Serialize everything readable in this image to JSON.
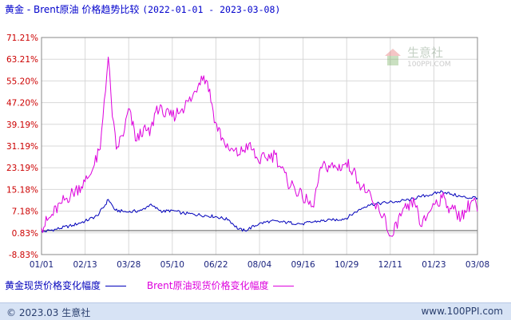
{
  "title": {
    "main": "黄金 - Brent原油 价格趋势比较",
    "date_range": "(2022-01-01 - 2023-03-08)"
  },
  "watermark": {
    "name": "生意社",
    "url": "100PPI.COM"
  },
  "legend": {
    "gold": "黄金现货价格变化幅度",
    "brent": "Brent原油现货价格变化幅度"
  },
  "footer": {
    "copyright": "© 2023.03 生意社",
    "url": "www.100PPI.com"
  },
  "colors": {
    "gold": "#0000bb",
    "brent": "#dd00dd",
    "grid": "#d8d8d8",
    "axis_label": "#cc0000"
  },
  "chart_data": {
    "type": "line",
    "x_ticks": [
      "01/01",
      "02/13",
      "03/28",
      "05/10",
      "06/22",
      "08/04",
      "09/16",
      "10/29",
      "12/11",
      "01/23",
      "03/08"
    ],
    "y_ticks": [
      "71.21%",
      "63.21%",
      "55.20%",
      "47.20%",
      "39.19%",
      "31.19%",
      "23.19%",
      "15.18%",
      "7.18%",
      "0.83%",
      "-8.83%"
    ],
    "ylim": [
      -8.83,
      71.21
    ],
    "series": [
      {
        "name": "黄金现货价格变化幅度",
        "x": [
          "2022-01-01",
          "2022-01-15",
          "2022-02-01",
          "2022-02-13",
          "2022-02-25",
          "2022-03-05",
          "2022-03-08",
          "2022-03-15",
          "2022-03-28",
          "2022-04-10",
          "2022-04-18",
          "2022-05-01",
          "2022-05-10",
          "2022-05-20",
          "2022-06-01",
          "2022-06-22",
          "2022-07-05",
          "2022-07-15",
          "2022-07-21",
          "2022-08-04",
          "2022-08-15",
          "2022-09-01",
          "2022-09-16",
          "2022-10-01",
          "2022-10-15",
          "2022-10-29",
          "2022-11-10",
          "2022-11-20",
          "2022-12-01",
          "2022-12-11",
          "2022-12-20",
          "2023-01-01",
          "2023-01-10",
          "2023-01-23",
          "2023-02-01",
          "2023-02-10",
          "2023-02-20",
          "2023-03-01",
          "2023-03-05",
          "2023-03-08"
        ],
        "y": [
          -0.5,
          0.5,
          2.0,
          3.5,
          5.5,
          9.5,
          11.5,
          7.5,
          6.8,
          7.5,
          9.5,
          7.0,
          7.5,
          6.5,
          6.0,
          5.2,
          4.0,
          0.5,
          0.0,
          2.5,
          3.5,
          3.0,
          2.5,
          3.5,
          3.8,
          4.5,
          7.5,
          9.5,
          10.0,
          10.5,
          10.8,
          11.5,
          12.5,
          13.5,
          14.5,
          13.5,
          12.5,
          12.0,
          12.5,
          12.0
        ]
      },
      {
        "name": "Brent原油现货价格变化幅度",
        "x": [
          "2022-01-01",
          "2022-01-10",
          "2022-01-20",
          "2022-02-01",
          "2022-02-13",
          "2022-02-20",
          "2022-02-28",
          "2022-03-04",
          "2022-03-08",
          "2022-03-12",
          "2022-03-16",
          "2022-03-24",
          "2022-03-28",
          "2022-04-05",
          "2022-04-12",
          "2022-04-18",
          "2022-04-25",
          "2022-05-01",
          "2022-05-10",
          "2022-05-20",
          "2022-05-30",
          "2022-06-08",
          "2022-06-14",
          "2022-06-22",
          "2022-07-01",
          "2022-07-05",
          "2022-07-15",
          "2022-07-25",
          "2022-08-04",
          "2022-08-10",
          "2022-08-20",
          "2022-09-01",
          "2022-09-08",
          "2022-09-16",
          "2022-09-26",
          "2022-10-05",
          "2022-10-12",
          "2022-10-20",
          "2022-10-29",
          "2022-11-05",
          "2022-11-10",
          "2022-11-18",
          "2022-11-25",
          "2022-12-01",
          "2022-12-07",
          "2022-12-11",
          "2022-12-15",
          "2022-12-20",
          "2022-12-28",
          "2023-01-05",
          "2023-01-12",
          "2023-01-23",
          "2023-02-01",
          "2023-02-10",
          "2023-02-20",
          "2023-03-01",
          "2023-03-05",
          "2023-03-08"
        ],
        "y": [
          1.0,
          5.0,
          10.0,
          14.0,
          18.0,
          22.0,
          30.0,
          48.0,
          64.0,
          42.0,
          30.0,
          37.0,
          45.0,
          33.0,
          38.0,
          35.0,
          46.0,
          43.0,
          42.0,
          45.0,
          49.0,
          57.0,
          55.0,
          40.0,
          32.0,
          30.0,
          28.0,
          32.0,
          25.0,
          27.0,
          28.0,
          18.0,
          16.0,
          12.0,
          9.0,
          23.0,
          24.0,
          23.0,
          25.0,
          22.0,
          18.0,
          14.0,
          10.0,
          7.0,
          5.0,
          -2.0,
          -1.5,
          5.0,
          8.0,
          10.0,
          1.5,
          10.0,
          12.0,
          8.0,
          5.0,
          10.0,
          12.0,
          7.0
        ]
      }
    ],
    "grid": true,
    "legend_position": "bottom"
  }
}
